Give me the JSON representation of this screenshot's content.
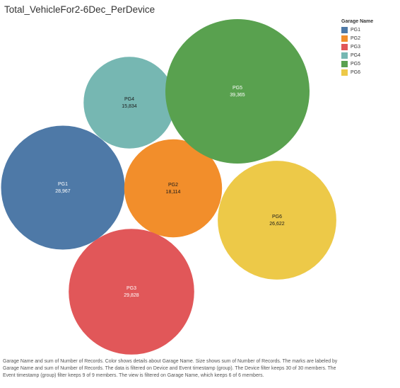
{
  "title": "Total_VehicleFor2-6Dec_PerDevice",
  "chart_data": {
    "type": "packed-bubble",
    "title": "Total_VehicleFor2-6Dec_PerDevice",
    "legend_title": "Garage Name",
    "legend_position": "top-right",
    "series": [
      {
        "name": "PG1",
        "value": 28967,
        "label": "28,967",
        "color": "#4e79a7",
        "label_color": "#ffffff"
      },
      {
        "name": "PG2",
        "value": 18114,
        "label": "18,114",
        "color": "#f28e2b",
        "label_color": "#1a1a1a"
      },
      {
        "name": "PG3",
        "value": 29828,
        "label": "29,828",
        "color": "#e15759",
        "label_color": "#ffffff"
      },
      {
        "name": "PG4",
        "value": 15834,
        "label": "15,834",
        "color": "#76b7b2",
        "label_color": "#1a1a1a"
      },
      {
        "name": "PG5",
        "value": 39365,
        "label": "39,365",
        "color": "#59a14f",
        "label_color": "#ffffff"
      },
      {
        "name": "PG6",
        "value": 26622,
        "label": "26,622",
        "color": "#edc948",
        "label_color": "#1a1a1a"
      }
    ]
  },
  "caption": "Garage Name and sum of Number of Records.  Color shows details about Garage Name.  Size shows sum of Number of Records.  The marks are labeled by Garage Name and sum of Number of Records. The data is filtered on Device and Event timestamp (group). The Device filter keeps 30 of 30 members. The Event timestamp (group) filter keeps 9 of 9 members. The view is filtered on Garage Name, which keeps 6 of 6 members."
}
